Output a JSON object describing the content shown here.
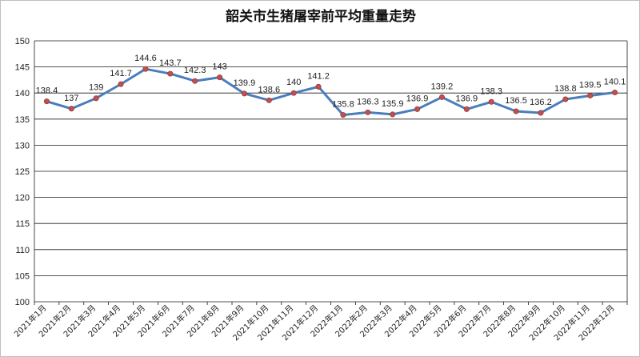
{
  "chart_data": {
    "type": "line",
    "title": "韶关市生猪屠宰前平均重量走势",
    "xlabel": "",
    "ylabel": "",
    "ylim": [
      100,
      150
    ],
    "yticks": [
      100,
      105,
      110,
      115,
      120,
      125,
      130,
      135,
      140,
      145,
      150
    ],
    "grid": true,
    "legend": "none",
    "categories": [
      "2021年1月",
      "2021年2月",
      "2021年3月",
      "2021年4月",
      "2021年5月",
      "2021年6月",
      "2021年7月",
      "2021年8月",
      "2021年9月",
      "2021年10月",
      "2021年11月",
      "2021年12月",
      "2022年1月",
      "2022年2月",
      "2022年3月",
      "2022年4月",
      "2022年5月",
      "2022年6月",
      "2022年7月",
      "2022年8月",
      "2022年9月",
      "2022年10月",
      "2022年11月",
      "2022年12月"
    ],
    "series": [
      {
        "values": [
          138.4,
          137,
          139,
          141.7,
          144.6,
          143.7,
          142.3,
          143,
          139.9,
          138.6,
          140,
          141.2,
          135.8,
          136.3,
          135.9,
          136.9,
          139.2,
          136.9,
          138.3,
          136.5,
          136.2,
          138.8,
          139.5,
          140.1
        ],
        "labels": [
          "138.4",
          "137",
          "139",
          "141.7",
          "144.6",
          "143.7",
          "142.3",
          "143",
          "139.9",
          "138.6",
          "140",
          "141.2",
          "135.8",
          "136.3",
          "135.9",
          "136.9",
          "139.2",
          "136.9",
          "138.3",
          "136.5",
          "136.2",
          "138.8",
          "139.5",
          "140.1"
        ],
        "color": "#4a7ebb",
        "marker_color": "#c0504d"
      }
    ]
  }
}
